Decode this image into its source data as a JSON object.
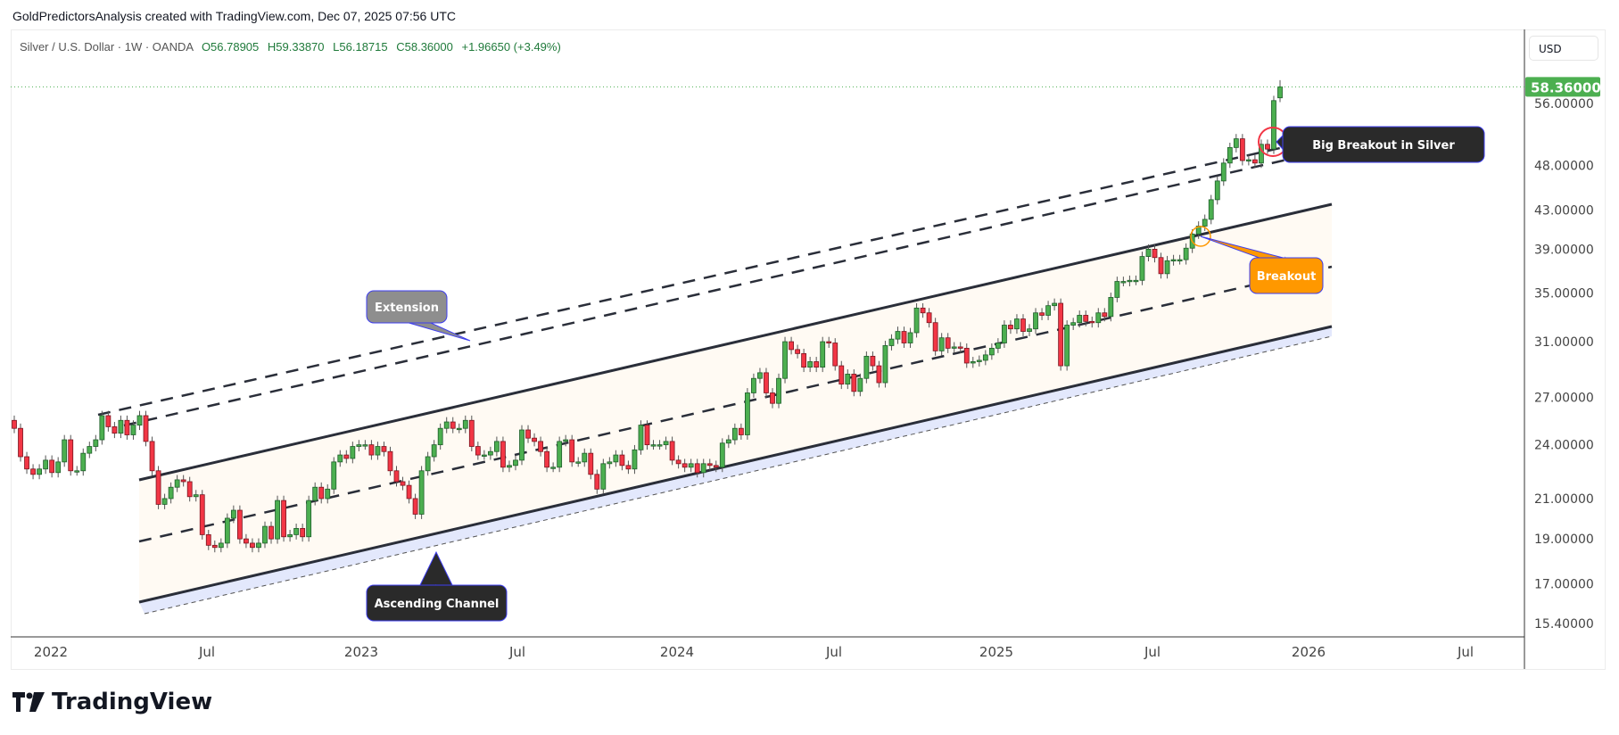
{
  "header": {
    "attribution": "GoldPredictorsAnalysis created with TradingView.com, Dec 07, 2025 07:56 UTC"
  },
  "legend": {
    "symbol": "Silver / U.S. Dollar · 1W · OANDA",
    "open": "O56.78905",
    "high": "H59.33870",
    "low": "L56.18715",
    "close": "C58.36000",
    "change": "+1.96650 (+3.49%)"
  },
  "currency_button": "USD",
  "colors": {
    "up": "#4caf50",
    "down": "#f23645",
    "last_price": "#4caf50",
    "channel_fill": "#fffaf3",
    "channel_band": "#e3e8fc",
    "breakout": "#ff9800",
    "big_breakout_circle": "#f23645"
  },
  "logo": {
    "text": "TradingView"
  },
  "chart_data": {
    "type": "candlestick",
    "interval": "1W",
    "y_scale": "log",
    "ylim": [
      15.0,
      67.3
    ],
    "y_ticks": [
      "56.00000",
      "48.00000",
      "43.00000",
      "39.00000",
      "35.00000",
      "31.00000",
      "27.00000",
      "24.00000",
      "21.00000",
      "19.00000",
      "17.00000",
      "15.40000"
    ],
    "y_tick_values": [
      56,
      48,
      43,
      39,
      35,
      31,
      27,
      24,
      21,
      19,
      17,
      15.4
    ],
    "x_ticks": [
      "2022",
      "Jul",
      "2023",
      "Jul",
      "2024",
      "Jul",
      "2025",
      "Jul",
      "2026",
      "Jul"
    ],
    "last_price": 58.36,
    "last_price_label": "58.36000",
    "weekly_closes": [
      25.0,
      23.3,
      22.6,
      22.3,
      22.6,
      23.1,
      22.4,
      23.0,
      24.3,
      22.5,
      22.5,
      23.5,
      23.9,
      24.3,
      25.8,
      25.1,
      24.7,
      25.5,
      24.6,
      25.2,
      25.8,
      24.2,
      22.5,
      20.7,
      21.0,
      21.6,
      22.0,
      21.9,
      21.1,
      21.2,
      19.2,
      18.7,
      18.6,
      18.8,
      20.0,
      20.4,
      19.0,
      18.8,
      18.6,
      18.8,
      19.6,
      19.0,
      20.9,
      19.1,
      19.2,
      19.5,
      19.1,
      20.9,
      21.6,
      21.0,
      21.5,
      23.0,
      23.4,
      23.2,
      23.9,
      24.0,
      24.0,
      23.4,
      23.9,
      23.6,
      22.5,
      21.9,
      21.7,
      21.0,
      20.2,
      22.5,
      23.3,
      24.0,
      25.0,
      25.4,
      25.0,
      25.0,
      25.5,
      23.9,
      23.4,
      23.4,
      23.6,
      24.2,
      22.7,
      22.8,
      23.1,
      24.9,
      24.4,
      24.2,
      23.6,
      22.7,
      22.7,
      24.2,
      24.3,
      23.0,
      23.0,
      23.5,
      22.3,
      21.5,
      22.9,
      23.0,
      23.4,
      22.8,
      22.6,
      23.7,
      25.2,
      24.0,
      24.0,
      24.0,
      24.2,
      23.1,
      22.9,
      22.7,
      22.9,
      22.4,
      22.9,
      22.8,
      22.7,
      24.1,
      24.3,
      25.0,
      24.6,
      27.3,
      28.3,
      28.7,
      27.3,
      26.6,
      28.3,
      31.0,
      30.4,
      30.1,
      29.1,
      29.5,
      29.1,
      31.0,
      30.9,
      29.2,
      27.9,
      28.6,
      27.4,
      28.3,
      29.9,
      29.2,
      28.0,
      30.7,
      31.2,
      31.8,
      30.9,
      31.7,
      33.7,
      33.3,
      32.5,
      30.3,
      31.3,
      30.5,
      30.6,
      30.5,
      29.4,
      29.5,
      29.6,
      30.0,
      30.5,
      30.9,
      32.3,
      32.0,
      32.8,
      31.8,
      32.0,
      33.3,
      33.1,
      33.9,
      34.1,
      29.2,
      32.3,
      32.5,
      33.1,
      32.6,
      32.5,
      33.3,
      33.0,
      34.6,
      36.0,
      36.0,
      36.1,
      36.1,
      38.3,
      39.0,
      38.2,
      36.7,
      37.9,
      38.0,
      38.0,
      39.1,
      40.5,
      41.3,
      42.0,
      44.1,
      46.2,
      48.3,
      50.2,
      51.3,
      48.6,
      48.7,
      48.3,
      50.6,
      50.0,
      56.4,
      58.36
    ],
    "last_candle": {
      "open": 56.78905,
      "high": 59.3387,
      "low": 56.18715,
      "close": 58.36
    },
    "annotations": [
      {
        "label": "Extension",
        "style": "gray callout"
      },
      {
        "label": "Ascending Channel",
        "style": "dark callout"
      },
      {
        "label": "Breakout",
        "style": "orange callout"
      },
      {
        "label": "Big Breakout in Silver",
        "style": "dark callout"
      }
    ],
    "drawings": [
      "ascending channel (upper, middle dashed, lower)",
      "two dashed extension lines",
      "breakout circles"
    ]
  }
}
